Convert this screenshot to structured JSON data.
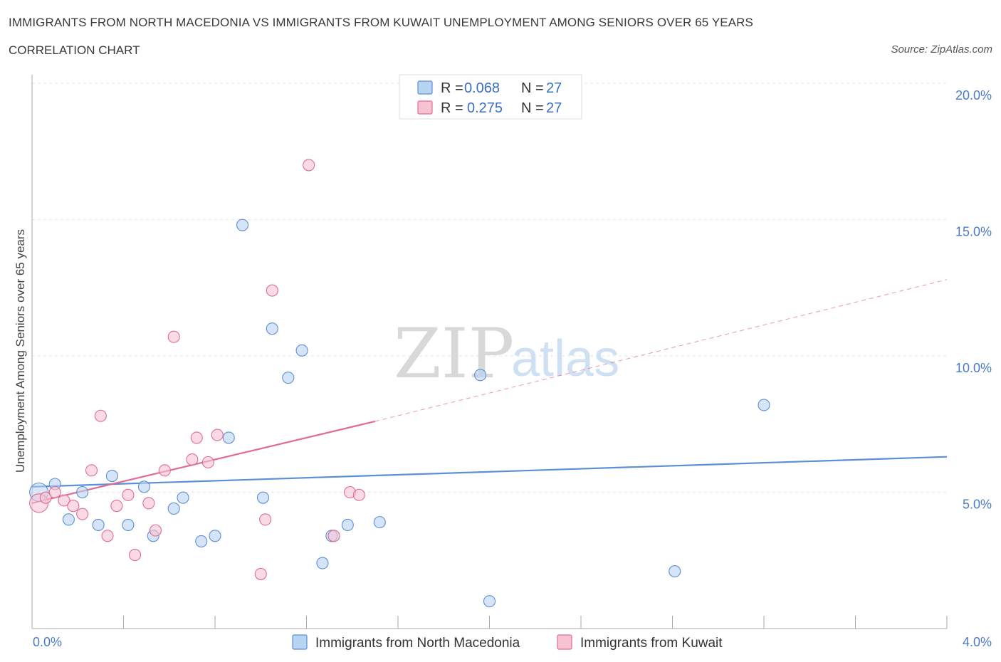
{
  "header": {
    "title": "IMMIGRANTS FROM NORTH MACEDONIA VS IMMIGRANTS FROM KUWAIT UNEMPLOYMENT AMONG SENIORS OVER 65 YEARS",
    "subtitle": "CORRELATION CHART",
    "source": "Source: ZipAtlas.com"
  },
  "watermark": {
    "zip": "ZIP",
    "atlas": "atlas"
  },
  "legend": {
    "rows": [
      {
        "r_label": "R =",
        "r_value": "0.068",
        "n_label": "N =",
        "n_value": "27",
        "color": "#a9c8f0"
      },
      {
        "r_label": "R =",
        "r_value": "0.275",
        "n_label": "N =",
        "n_value": "27",
        "color": "#f6b9cc"
      }
    ]
  },
  "chart_data": {
    "type": "scatter",
    "xlabel": "",
    "ylabel": "Unemployment Among Seniors over 65 years",
    "xlim": [
      0,
      4
    ],
    "ylim": [
      0,
      20
    ],
    "x_tick_labels": [
      "0.0%",
      "4.0%"
    ],
    "y_ticks": [
      5,
      10,
      15,
      20
    ],
    "y_tick_labels": [
      "5.0%",
      "10.0%",
      "15.0%",
      "20.0%"
    ],
    "grid": true,
    "legend_position": "top-center",
    "series": [
      {
        "name": "Immigrants from North Macedonia",
        "color": "#5b8fd6",
        "fill": "#b9d3f2",
        "points": [
          [
            0.03,
            5.0
          ],
          [
            0.1,
            5.3
          ],
          [
            0.16,
            4.0
          ],
          [
            0.22,
            5.0
          ],
          [
            0.29,
            3.8
          ],
          [
            0.35,
            5.6
          ],
          [
            0.42,
            3.8
          ],
          [
            0.49,
            5.2
          ],
          [
            0.53,
            3.4
          ],
          [
            0.62,
            4.4
          ],
          [
            0.66,
            4.8
          ],
          [
            0.74,
            3.2
          ],
          [
            0.8,
            3.4
          ],
          [
            0.86,
            7.0
          ],
          [
            0.92,
            14.8
          ],
          [
            1.01,
            4.8
          ],
          [
            1.05,
            11.0
          ],
          [
            1.12,
            9.2
          ],
          [
            1.18,
            10.2
          ],
          [
            1.27,
            2.4
          ],
          [
            1.31,
            3.4
          ],
          [
            1.38,
            3.8
          ],
          [
            1.52,
            3.9
          ],
          [
            1.96,
            9.3
          ],
          [
            2.0,
            1.0
          ],
          [
            2.81,
            2.1
          ],
          [
            3.2,
            8.2
          ]
        ],
        "trend": {
          "x": [
            0,
            4
          ],
          "y": [
            5.2,
            6.3
          ]
        }
      },
      {
        "name": "Immigrants from Kuwait",
        "color": "#e06b94",
        "fill": "#f7c3d3",
        "points": [
          [
            0.03,
            4.6
          ],
          [
            0.06,
            4.8
          ],
          [
            0.1,
            5.0
          ],
          [
            0.14,
            4.7
          ],
          [
            0.18,
            4.5
          ],
          [
            0.22,
            4.2
          ],
          [
            0.26,
            5.8
          ],
          [
            0.3,
            7.8
          ],
          [
            0.33,
            3.4
          ],
          [
            0.37,
            4.5
          ],
          [
            0.42,
            4.9
          ],
          [
            0.45,
            2.7
          ],
          [
            0.51,
            4.6
          ],
          [
            0.54,
            3.6
          ],
          [
            0.58,
            5.8
          ],
          [
            0.62,
            10.7
          ],
          [
            0.7,
            6.2
          ],
          [
            0.72,
            7.0
          ],
          [
            0.77,
            6.1
          ],
          [
            0.81,
            7.1
          ],
          [
            1.0,
            2.0
          ],
          [
            1.02,
            4.0
          ],
          [
            1.05,
            12.4
          ],
          [
            1.21,
            17.0
          ],
          [
            1.32,
            3.4
          ],
          [
            1.39,
            5.0
          ],
          [
            1.43,
            4.9
          ]
        ],
        "trend": {
          "x": [
            0,
            1.5
          ],
          "y": [
            4.6,
            7.6
          ]
        },
        "trend_extension": {
          "x": [
            1.5,
            4
          ],
          "y": [
            7.6,
            12.8
          ]
        }
      }
    ]
  }
}
